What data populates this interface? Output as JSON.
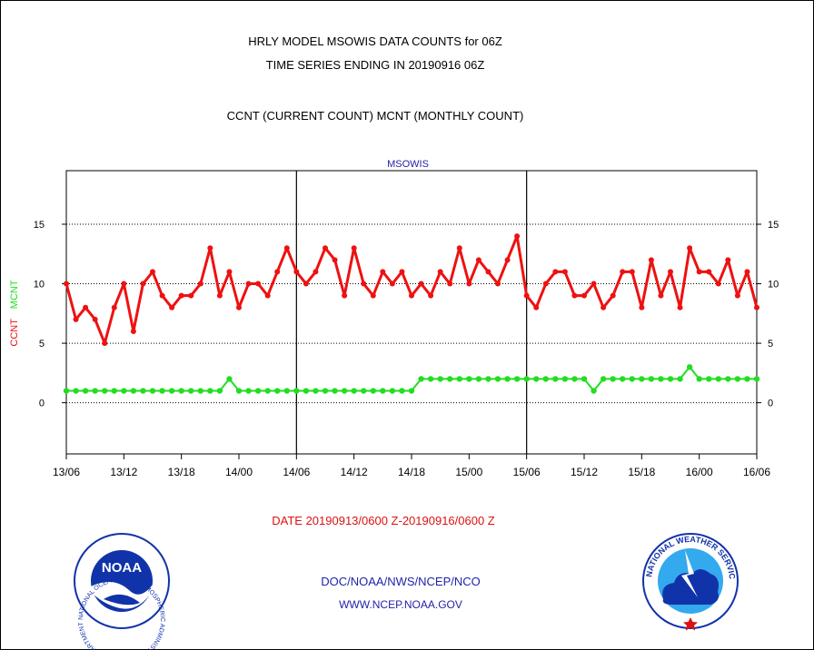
{
  "header": {
    "line1": "HRLY MODEL MSOWIS DATA COUNTS for 06Z",
    "line2": "TIME SERIES ENDING IN 20190916 06Z",
    "line3": "CCNT (CURRENT COUNT) MCNT (MONTHLY COUNT)"
  },
  "footer": {
    "date_range": "DATE 20190913/0600 Z-20190916/0600 Z",
    "org": "DOC/NOAA/NWS/NCEP/NCO",
    "url": "WWW.NCEP.NOAA.GOV"
  },
  "logos": {
    "left": "NOAA",
    "left_ring": "NATIONAL OCEANIC AND ATMOSPHERIC ADMINISTRATION · U.S. DEPARTMENT OF COMMERCE",
    "right_ring": "NATIONAL WEATHER SERVICE"
  },
  "colors": {
    "ccnt": "#ee1111",
    "mcnt": "#22dd22",
    "title_blue": "#2222aa",
    "footer_red": "#dd1111"
  },
  "chart_data": {
    "type": "line",
    "title": "MSOWIS",
    "ylabel_left_parts": [
      "CCNT",
      "MCNT"
    ],
    "ylim": [
      -4.3,
      19.5
    ],
    "yticks": [
      0,
      5,
      10,
      15
    ],
    "xtick_labels": [
      "13/06",
      "13/12",
      "13/18",
      "14/00",
      "14/06",
      "14/12",
      "14/18",
      "15/00",
      "15/06",
      "15/12",
      "15/18",
      "16/00",
      "16/06"
    ],
    "xlim_hours": [
      0,
      72
    ],
    "day_boundaries_hours": [
      24,
      48
    ],
    "grid_y": [
      0,
      5,
      10,
      15
    ],
    "series": [
      {
        "name": "CCNT",
        "values": [
          10,
          7,
          8,
          7,
          5,
          8,
          10,
          6,
          10,
          11,
          9,
          8,
          9,
          9,
          10,
          13,
          9,
          11,
          8,
          10,
          10,
          9,
          11,
          13,
          11,
          10,
          11,
          13,
          12,
          9,
          13,
          10,
          9,
          11,
          10,
          11,
          9,
          10,
          9,
          11,
          10,
          13,
          10,
          12,
          11,
          10,
          12,
          14,
          9,
          8,
          10,
          11,
          11,
          9,
          9,
          10,
          8,
          9,
          11,
          11,
          8,
          12,
          9,
          11,
          8,
          13,
          11,
          11,
          10,
          12,
          9,
          11,
          8
        ]
      },
      {
        "name": "MCNT",
        "values": [
          1,
          1,
          1,
          1,
          1,
          1,
          1,
          1,
          1,
          1,
          1,
          1,
          1,
          1,
          1,
          1,
          1,
          2,
          1,
          1,
          1,
          1,
          1,
          1,
          1,
          1,
          1,
          1,
          1,
          1,
          1,
          1,
          1,
          1,
          1,
          1,
          1,
          2,
          2,
          2,
          2,
          2,
          2,
          2,
          2,
          2,
          2,
          2,
          2,
          2,
          2,
          2,
          2,
          2,
          2,
          1,
          2,
          2,
          2,
          2,
          2,
          2,
          2,
          2,
          2,
          3,
          2,
          2,
          2,
          2,
          2,
          2,
          2
        ]
      }
    ]
  }
}
